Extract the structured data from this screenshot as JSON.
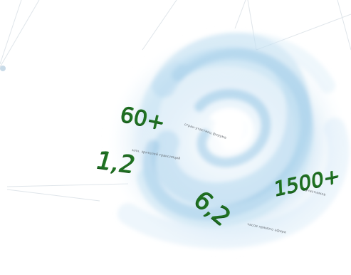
{
  "stats": [
    {
      "value": "60+",
      "caption": "стран-участниц форума"
    },
    {
      "value": "1,2",
      "caption": "млн. зрителей трансляций"
    },
    {
      "value": "6,2",
      "caption": "часов прямого эфира"
    },
    {
      "value": "1500+",
      "caption": "участников"
    }
  ],
  "colors": {
    "numbers": "#1f6f22",
    "swirl": "#8cc3e6",
    "lines": "#dfe5ea"
  }
}
